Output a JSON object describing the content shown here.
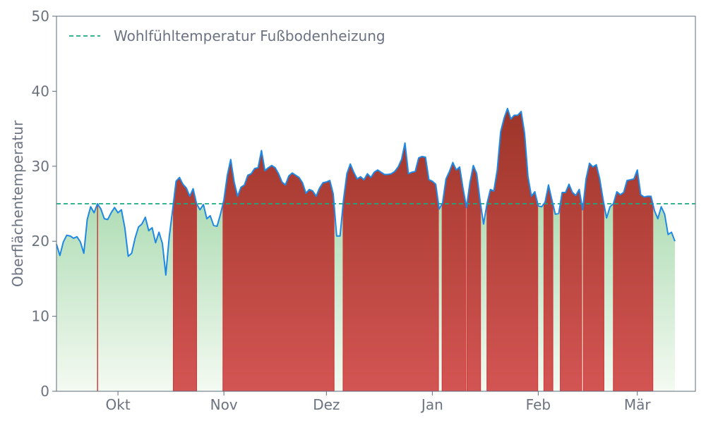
{
  "chart_data": {
    "type": "area",
    "title": "",
    "xlabel": "",
    "ylabel": "Oberflächentemperatur",
    "ylim": [
      0,
      50
    ],
    "yticks": [
      0,
      10,
      20,
      30,
      40,
      50
    ],
    "xlim": [
      "2023-09-13",
      "2024-03-18"
    ],
    "xticks": [
      {
        "label": "Okt",
        "date": "2023-10-01"
      },
      {
        "label": "Nov",
        "date": "2023-11-01"
      },
      {
        "label": "Dez",
        "date": "2023-12-01"
      },
      {
        "label": "Jan",
        "date": "2024-01-01"
      },
      {
        "label": "Feb",
        "date": "2024-02-01"
      },
      {
        "label": "Mär",
        "date": "2024-03-01"
      }
    ],
    "threshold": {
      "name": "Wohlfühltemperatur Fußbodenheizung",
      "value": 25,
      "color": "#1aaa80",
      "style": "dashed"
    },
    "legend": {
      "position": "top-left"
    },
    "grid": false,
    "colors": {
      "line": "#1e88e5",
      "below_fill_top": "#6abf78",
      "below_fill_bottom": "#f4faf2",
      "above_fill_top": "#8c2b1c",
      "above_fill_bottom": "#d35553",
      "above_edge": "#d13b3b",
      "axis": "#5f6b7a",
      "text": "#6b7280"
    },
    "series": [
      {
        "start_date": "2023-09-13",
        "values": [
          19.6,
          18.1,
          19.9,
          20.8,
          20.7,
          20.4,
          20.6,
          19.9,
          18.4,
          22.9,
          24.6,
          23.8,
          25.0,
          24.3,
          23.0,
          22.9,
          23.8,
          24.5,
          23.8,
          24.2,
          21.8,
          18.0,
          18.4,
          20.4,
          21.9,
          22.3,
          23.2,
          21.4,
          21.8,
          19.8,
          21.2,
          19.7,
          15.5,
          20.6,
          24.2,
          28.0,
          28.5,
          27.6,
          27.1,
          26.0,
          27.0,
          25.0,
          24.2,
          24.9,
          23.0,
          23.4,
          22.1,
          22.0,
          23.6,
          25.5,
          28.8,
          30.9,
          27.9,
          26.0,
          27.2,
          27.5,
          28.8,
          29.0,
          29.7,
          29.8,
          32.1,
          29.4,
          29.8,
          30.1,
          29.8,
          29.0,
          27.9,
          27.5,
          28.7,
          29.1,
          28.8,
          28.5,
          27.8,
          26.4,
          26.9,
          26.7,
          26.0,
          27.1,
          27.8,
          27.9,
          28.1,
          26.3,
          20.7,
          20.7,
          25.5,
          29.0,
          30.3,
          29.2,
          28.3,
          28.6,
          28.2,
          29.0,
          28.5,
          29.2,
          29.5,
          29.2,
          28.9,
          28.9,
          29.0,
          29.3,
          29.9,
          30.9,
          33.1,
          29.0,
          29.2,
          29.3,
          31.1,
          31.3,
          31.2,
          28.2,
          28.0,
          27.6,
          24.3,
          25.1,
          28.3,
          29.3,
          30.5,
          29.5,
          29.9,
          27.0,
          24.5,
          27.8,
          30.1,
          29.0,
          25.3,
          22.3,
          25.0,
          26.9,
          26.7,
          29.5,
          34.6,
          36.4,
          37.7,
          36.3,
          36.8,
          36.8,
          37.3,
          34.4,
          28.6,
          26.0,
          26.6,
          24.7,
          24.6,
          25.2,
          27.5,
          25.5,
          23.6,
          23.7,
          26.5,
          26.5,
          27.6,
          26.5,
          26.1,
          26.9,
          24.2,
          28.3,
          30.4,
          29.9,
          30.2,
          28.3,
          25.5,
          23.1,
          24.6,
          25.0,
          26.6,
          26.2,
          26.5,
          28.1,
          28.2,
          28.3,
          29.5,
          26.2,
          25.9,
          26.0,
          26.0,
          24.1,
          23.0,
          24.6,
          23.6,
          20.9,
          21.2,
          20.0
        ]
      }
    ]
  }
}
